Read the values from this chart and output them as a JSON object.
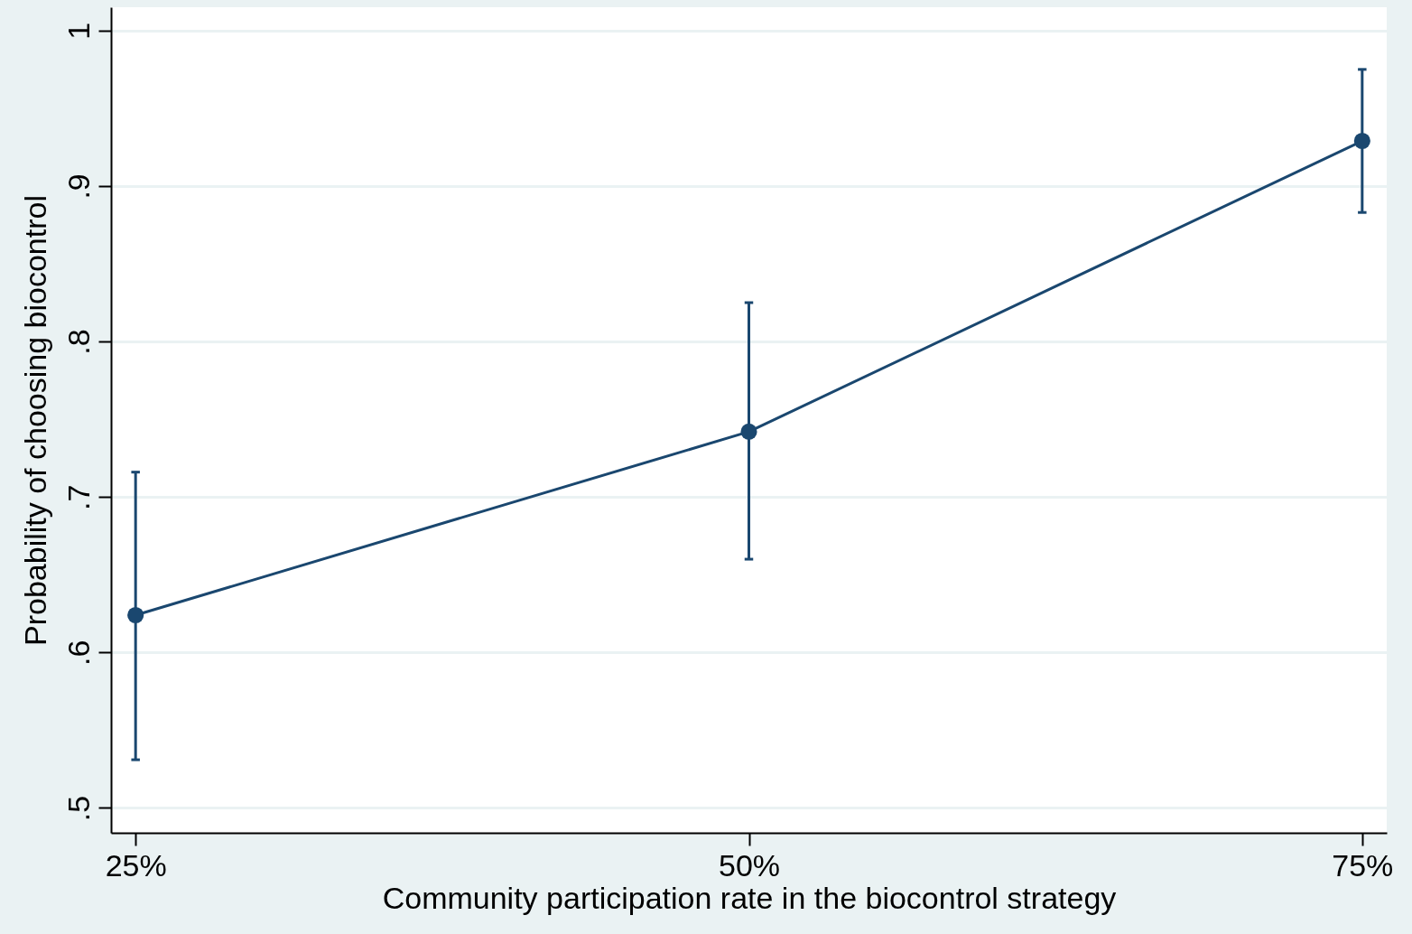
{
  "chart_data": {
    "type": "line",
    "xlabel": "Community participation rate in the biocontrol strategy",
    "ylabel": "Probability of choosing biocontrol",
    "categories": [
      "25%",
      "50%",
      "75%"
    ],
    "series": [
      {
        "color": "#1a476f",
        "values": [
          0.624,
          0.742,
          0.929
        ],
        "errors": [
          [
            0.531,
            0.716
          ],
          [
            0.66,
            0.825
          ],
          [
            0.883,
            0.975
          ]
        ]
      }
    ],
    "ylim": [
      0.484,
      1.015
    ],
    "yticks": [
      {
        "value": 0.5,
        "label": ".5"
      },
      {
        "value": 0.6,
        "label": ".6"
      },
      {
        "value": 0.7,
        "label": ".7"
      },
      {
        "value": 0.8,
        "label": ".8"
      },
      {
        "value": 0.9,
        "label": ".9"
      },
      {
        "value": 1,
        "label": "1"
      }
    ],
    "grid": "y",
    "marker": "circle",
    "line_style": "solid"
  }
}
